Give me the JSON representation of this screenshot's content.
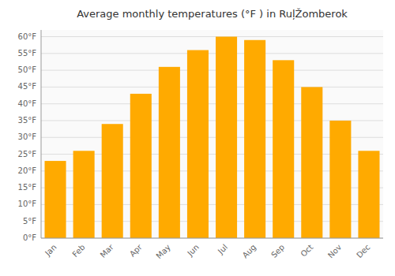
{
  "chart_data": {
    "type": "bar",
    "title": "Average monthly temperatures (°F ) in RuļŽomberok",
    "categories": [
      "Jan",
      "Feb",
      "Mar",
      "Apr",
      "May",
      "Jun",
      "Jul",
      "Aug",
      "Sep",
      "Oct",
      "Nov",
      "Dec"
    ],
    "values": [
      23,
      26,
      34,
      43,
      51,
      56,
      60,
      59,
      53,
      45,
      35,
      26
    ],
    "color": "#FFAA00",
    "ylim": [
      0,
      62
    ],
    "yticks": [
      {
        "value": 0,
        "label": "0°F"
      },
      {
        "value": 5,
        "label": "5°F"
      },
      {
        "value": 10,
        "label": "10°F"
      },
      {
        "value": 15,
        "label": "15°F"
      },
      {
        "value": 20,
        "label": "20°F"
      },
      {
        "value": 25,
        "label": "25°F"
      },
      {
        "value": 30,
        "label": "30°F"
      },
      {
        "value": 35,
        "label": "35°F"
      },
      {
        "value": 40,
        "label": "40°F"
      },
      {
        "value": 45,
        "label": "45°F"
      },
      {
        "value": 50,
        "label": "50°F"
      },
      {
        "value": 55,
        "label": "55°F"
      },
      {
        "value": 60,
        "label": "60°F"
      }
    ],
    "grid": true
  }
}
